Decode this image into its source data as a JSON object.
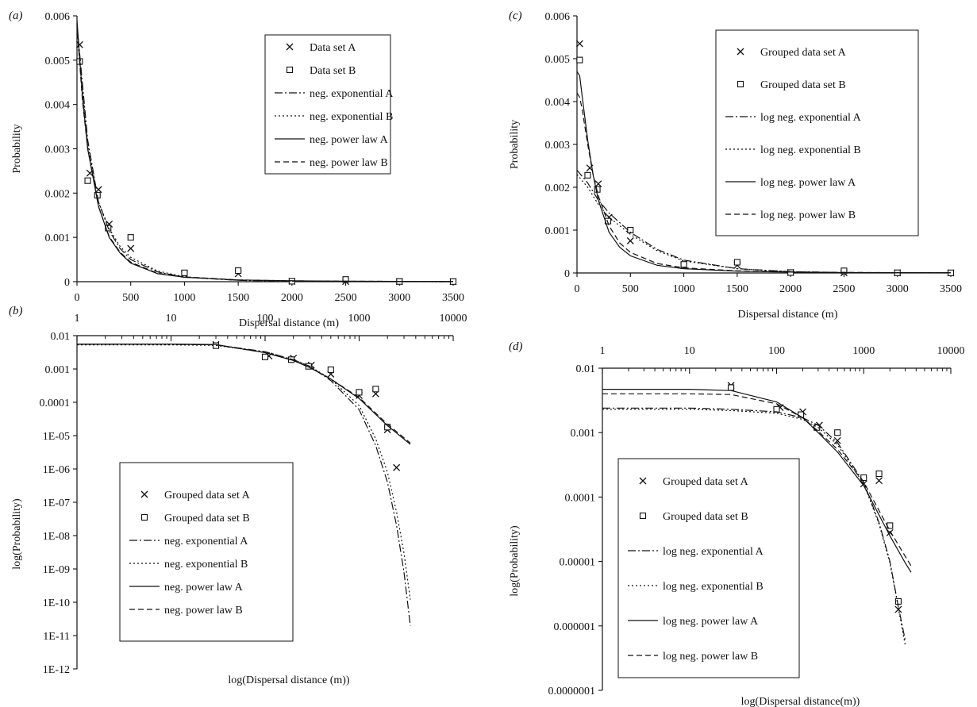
{
  "chart_data": [
    {
      "id": "a",
      "panel_label": "(a)",
      "type": "scatter",
      "xlabel": "Dispersal distance (m)",
      "ylabel": "Probability",
      "xlim": [
        0,
        3500
      ],
      "ylim": [
        0,
        0.006
      ],
      "x_ticks": [
        0,
        500,
        1000,
        1500,
        2000,
        2500,
        3000,
        3500
      ],
      "x_tick_labels": [
        "0",
        "500",
        "1000",
        "1500",
        "2000",
        "2500",
        "3000",
        "3500"
      ],
      "y_ticks": [
        0,
        0.001,
        0.002,
        0.003,
        0.004,
        0.005,
        0.006
      ],
      "y_tick_labels": [
        "0",
        "0.001",
        "0.002",
        "0.003",
        "0.004",
        "0.005",
        "0.006"
      ],
      "x_scale": "linear",
      "y_scale": "linear",
      "legend_position": "top-right",
      "series": [
        {
          "name": "Data set A",
          "kind": "points",
          "marker": "x",
          "x": [
            25,
            120,
            200,
            300,
            500,
            1000,
            1500,
            2000,
            2500,
            3000,
            3500
          ],
          "y": [
            0.00535,
            0.00245,
            0.00208,
            0.0013,
            0.00075,
            0.00017,
            0.00018,
            1e-05,
            5e-06,
            2e-06,
            1e-06
          ]
        },
        {
          "name": "Data set B",
          "kind": "points",
          "marker": "square",
          "x": [
            25,
            100,
            190,
            290,
            500,
            1000,
            1500,
            2000,
            2500,
            3000,
            3500
          ],
          "y": [
            0.00497,
            0.00228,
            0.00195,
            0.00121,
            0.001,
            0.0002,
            0.00025,
            1e-05,
            5e-05,
            5e-06,
            3e-06
          ]
        },
        {
          "name": "neg. exponential A",
          "kind": "line",
          "dash": "10,3,2,3",
          "x": [
            0,
            100,
            200,
            300,
            400,
            500,
            750,
            1000,
            1500,
            2000,
            2500,
            3000,
            3500
          ],
          "y": [
            0.0058,
            0.0032,
            0.0018,
            0.00115,
            0.00075,
            0.0005,
            0.00022,
            0.0001,
            3e-05,
            1e-05,
            3e-06,
            1e-06,
            0
          ]
        },
        {
          "name": "neg. exponential B",
          "kind": "line",
          "dash": "2,3",
          "x": [
            0,
            100,
            200,
            300,
            400,
            500,
            750,
            1000,
            1500,
            2000,
            2500,
            3000,
            3500
          ],
          "y": [
            0.0056,
            0.0031,
            0.0018,
            0.0012,
            0.0008,
            0.00055,
            0.00024,
            0.00011,
            3e-05,
            1e-05,
            3e-06,
            1e-06,
            0
          ]
        },
        {
          "name": "neg. power law A",
          "kind": "line",
          "dash": "",
          "x": [
            0,
            50,
            100,
            200,
            300,
            400,
            500,
            750,
            1000,
            1500,
            2000,
            2500,
            3000,
            3500
          ],
          "y": [
            0.0059,
            0.0042,
            0.003,
            0.0017,
            0.001,
            0.00065,
            0.00042,
            0.00018,
            0.0001,
            4e-05,
            2e-05,
            1e-05,
            8e-06,
            6e-06
          ]
        },
        {
          "name": "neg. power law B",
          "kind": "line",
          "dash": "7,4",
          "x": [
            0,
            50,
            100,
            200,
            300,
            400,
            500,
            750,
            1000,
            1500,
            2000,
            2500,
            3000,
            3500
          ],
          "y": [
            0.0058,
            0.0041,
            0.003,
            0.0017,
            0.00102,
            0.00067,
            0.00044,
            0.00019,
            0.00011,
            4e-05,
            2e-05,
            1e-05,
            8e-06,
            6e-06
          ]
        }
      ]
    },
    {
      "id": "b",
      "panel_label": "(b)",
      "type": "scatter",
      "xlabel": "log(Dispersal distance (m))",
      "ylabel": "log(Probability)",
      "xlim": [
        1,
        10000
      ],
      "ylim": [
        1e-12,
        0.01
      ],
      "x_scale": "log",
      "y_scale": "log",
      "x_axis_position": "top",
      "x_ticks": [
        1,
        10,
        100,
        1000,
        10000
      ],
      "x_tick_labels": [
        "1",
        "10",
        "100",
        "1000",
        "10000"
      ],
      "y_ticks": [
        0.01,
        0.001,
        0.0001,
        1e-05,
        1e-06,
        1e-07,
        1e-08,
        1e-09,
        1e-10,
        1e-11,
        1e-12
      ],
      "y_tick_labels": [
        "0.01",
        "0.001",
        "0.0001",
        "1E-05",
        "1E-06",
        "1E-07",
        "1E-08",
        "1E-09",
        "1E-10",
        "1E-11",
        "1E-12"
      ],
      "legend_position": "center",
      "series": [
        {
          "name": "Grouped data set A",
          "kind": "points",
          "marker": "x",
          "x": [
            30,
            110,
            200,
            310,
            500,
            1000,
            1500,
            2000,
            2500
          ],
          "y": [
            0.0054,
            0.00245,
            0.0021,
            0.0013,
            0.0007,
            0.00016,
            0.00018,
            1.5e-05,
            1.1e-06
          ]
        },
        {
          "name": "Grouped data set B",
          "kind": "points",
          "marker": "square",
          "x": [
            30,
            100,
            190,
            290,
            500,
            1000,
            1500,
            2000
          ],
          "y": [
            0.005,
            0.0023,
            0.0019,
            0.0012,
            0.00095,
            0.0002,
            0.00025,
            1.8e-05
          ]
        },
        {
          "name": "neg. exponential A",
          "kind": "line",
          "dash": "10,3,2,3",
          "x": [
            1,
            10,
            30,
            100,
            200,
            300,
            500,
            1000,
            1500,
            2000,
            2500,
            3000,
            3500
          ],
          "y": [
            0.0055,
            0.0055,
            0.0053,
            0.0033,
            0.0019,
            0.0012,
            0.00045,
            6e-05,
            5e-06,
            4e-07,
            2e-08,
            8e-10,
            2e-11
          ]
        },
        {
          "name": "neg. exponential B",
          "kind": "line",
          "dash": "2,3",
          "x": [
            1,
            10,
            30,
            100,
            200,
            300,
            500,
            1000,
            1500,
            2000,
            2500,
            3000,
            3500
          ],
          "y": [
            0.0053,
            0.0053,
            0.0051,
            0.0032,
            0.0019,
            0.0012,
            0.0005,
            8e-05,
            8e-06,
            8e-07,
            5e-08,
            3e-09,
            1.2e-10
          ]
        },
        {
          "name": "neg. power law A",
          "kind": "line",
          "dash": "",
          "x": [
            1,
            10,
            30,
            100,
            200,
            300,
            500,
            1000,
            2000,
            3500
          ],
          "y": [
            0.0056,
            0.0056,
            0.0054,
            0.0031,
            0.0018,
            0.0011,
            0.0005,
            0.00013,
            2e-05,
            5.5e-06
          ]
        },
        {
          "name": "neg. power law B",
          "kind": "line",
          "dash": "7,4",
          "x": [
            1,
            10,
            30,
            100,
            200,
            300,
            500,
            1000,
            2000,
            3500
          ],
          "y": [
            0.0055,
            0.0055,
            0.0053,
            0.0031,
            0.0018,
            0.0011,
            0.0005,
            0.00014,
            2.2e-05,
            6e-06
          ]
        }
      ]
    },
    {
      "id": "c",
      "panel_label": "(c)",
      "type": "scatter",
      "xlabel": "Dispersal distance (m)",
      "ylabel": "Probability",
      "xlim": [
        0,
        3500
      ],
      "ylim": [
        0,
        0.006
      ],
      "x_scale": "linear",
      "y_scale": "linear",
      "x_ticks": [
        0,
        500,
        1000,
        1500,
        2000,
        2500,
        3000,
        3500
      ],
      "x_tick_labels": [
        "0",
        "500",
        "1000",
        "1500",
        "2000",
        "2500",
        "3000",
        "3500"
      ],
      "y_ticks": [
        0,
        0.001,
        0.002,
        0.003,
        0.004,
        0.005,
        0.006
      ],
      "y_tick_labels": [
        "0",
        "0.001",
        "0.002",
        "0.003",
        "0.004",
        "0.005",
        "0.006"
      ],
      "legend_position": "top-right",
      "series": [
        {
          "name": "Grouped data set A",
          "kind": "points",
          "marker": "x",
          "x": [
            25,
            120,
            200,
            300,
            500,
            1000,
            1500,
            2000,
            2500,
            3000,
            3500
          ],
          "y": [
            0.00535,
            0.00245,
            0.00208,
            0.0013,
            0.00075,
            0.00017,
            0.00018,
            1e-05,
            5e-06,
            2e-06,
            1e-06
          ]
        },
        {
          "name": "Grouped data set B",
          "kind": "points",
          "marker": "square",
          "x": [
            25,
            100,
            190,
            290,
            500,
            1000,
            1500,
            2000,
            2500,
            3000,
            3500
          ],
          "y": [
            0.00497,
            0.00228,
            0.00195,
            0.00121,
            0.001,
            0.0002,
            0.00025,
            1e-05,
            5e-05,
            5e-06,
            3e-06
          ]
        },
        {
          "name": "log neg. exponential A",
          "kind": "line",
          "dash": "10,3,2,3",
          "x": [
            0,
            100,
            200,
            300,
            500,
            750,
            1000,
            1500,
            2000,
            2500,
            3000,
            3500
          ],
          "y": [
            0.0024,
            0.0021,
            0.0017,
            0.0014,
            0.00095,
            0.00055,
            0.0003,
            0.0001,
            3e-05,
            1e-05,
            3e-06,
            1e-06
          ]
        },
        {
          "name": "log neg. exponential B",
          "kind": "line",
          "dash": "2,3",
          "x": [
            0,
            100,
            200,
            300,
            500,
            750,
            1000,
            1500,
            2000,
            2500,
            3000,
            3500
          ],
          "y": [
            0.0023,
            0.002,
            0.0016,
            0.0013,
            0.0009,
            0.00052,
            0.00028,
            0.0001,
            3e-05,
            1e-05,
            3e-06,
            1e-06
          ]
        },
        {
          "name": "log neg. power law A",
          "kind": "line",
          "dash": "",
          "x": [
            0,
            25,
            50,
            100,
            150,
            200,
            300,
            400,
            500,
            750,
            1000,
            1500,
            2000,
            2500,
            3000,
            3500
          ],
          "y": [
            0.0047,
            0.0046,
            0.0041,
            0.0031,
            0.0023,
            0.0017,
            0.00095,
            0.0006,
            0.0004,
            0.00018,
            0.0001,
            4e-05,
            2e-05,
            1e-05,
            7e-06,
            5e-06
          ]
        },
        {
          "name": "log neg. power law B",
          "kind": "line",
          "dash": "7,4",
          "x": [
            0,
            25,
            50,
            100,
            150,
            200,
            300,
            400,
            500,
            750,
            1000,
            1500,
            2000,
            2500,
            3000,
            3500
          ],
          "y": [
            0.0042,
            0.0041,
            0.0038,
            0.003,
            0.0023,
            0.0018,
            0.0011,
            0.0007,
            0.00048,
            0.00022,
            0.00012,
            5e-05,
            2.5e-05,
            1.3e-05,
            8e-06,
            6e-06
          ]
        }
      ]
    },
    {
      "id": "d",
      "panel_label": "(d)",
      "type": "scatter",
      "xlabel": "log(Dispersal distance(m))",
      "ylabel": "log(Probability)",
      "xlim": [
        1,
        10000
      ],
      "ylim": [
        1e-07,
        0.01
      ],
      "x_scale": "log",
      "y_scale": "log",
      "x_axis_position": "top",
      "x_ticks": [
        1,
        10,
        100,
        1000,
        10000
      ],
      "x_tick_labels": [
        "1",
        "10",
        "100",
        "1000",
        "10000"
      ],
      "y_ticks": [
        0.01,
        0.001,
        0.0001,
        1e-05,
        1e-06,
        1e-07
      ],
      "y_tick_labels": [
        "0.01",
        "0.001",
        "0.0001",
        "0.00001",
        "0.000001",
        "0.0000001"
      ],
      "legend_position": "bottom-left",
      "series": [
        {
          "name": "Grouped data set A",
          "kind": "points",
          "marker": "x",
          "x": [
            30,
            110,
            200,
            310,
            500,
            1000,
            1500,
            2000,
            2500
          ],
          "y": [
            0.0054,
            0.00245,
            0.0021,
            0.0013,
            0.00075,
            0.00016,
            0.00018,
            2.8e-05,
            1.8e-06
          ]
        },
        {
          "name": "Grouped data set B",
          "kind": "points",
          "marker": "square",
          "x": [
            30,
            100,
            190,
            290,
            500,
            1000,
            1500,
            2000,
            2500
          ],
          "y": [
            0.005,
            0.0023,
            0.0019,
            0.0012,
            0.001,
            0.0002,
            0.00023,
            3.6e-05,
            2.4e-06
          ]
        },
        {
          "name": "log neg. exponential A",
          "kind": "line",
          "dash": "10,3,2,3",
          "x": [
            1,
            10,
            30,
            100,
            200,
            300,
            500,
            1000,
            1500,
            2000,
            2500,
            3000
          ],
          "y": [
            0.0024,
            0.0024,
            0.0023,
            0.0021,
            0.0017,
            0.0013,
            0.0007,
            0.00017,
            4e-05,
            1e-05,
            2e-06,
            6e-07
          ]
        },
        {
          "name": "log neg. exponential B",
          "kind": "line",
          "dash": "2,3",
          "x": [
            1,
            10,
            30,
            100,
            200,
            300,
            500,
            1000,
            1500,
            2000,
            2500,
            3000
          ],
          "y": [
            0.0023,
            0.0023,
            0.0022,
            0.002,
            0.0016,
            0.0012,
            0.00065,
            0.00016,
            3.8e-05,
            9.5e-06,
            1.9e-06,
            5e-07
          ]
        },
        {
          "name": "log neg. power law A",
          "kind": "line",
          "dash": "",
          "x": [
            1,
            10,
            30,
            100,
            200,
            300,
            500,
            1000,
            2000,
            3000,
            3500
          ],
          "y": [
            0.0047,
            0.0047,
            0.0045,
            0.003,
            0.0017,
            0.001,
            0.0005,
            0.00015,
            2.5e-05,
            9.5e-06,
            6.8e-06
          ]
        },
        {
          "name": "log neg. power law B",
          "kind": "line",
          "dash": "7,4",
          "x": [
            1,
            10,
            30,
            100,
            200,
            300,
            500,
            1000,
            2000,
            3000,
            3500
          ],
          "y": [
            0.004,
            0.004,
            0.0039,
            0.0028,
            0.0017,
            0.00105,
            0.00055,
            0.00017,
            3e-05,
            1.2e-05,
            8.5e-06
          ]
        }
      ]
    }
  ]
}
